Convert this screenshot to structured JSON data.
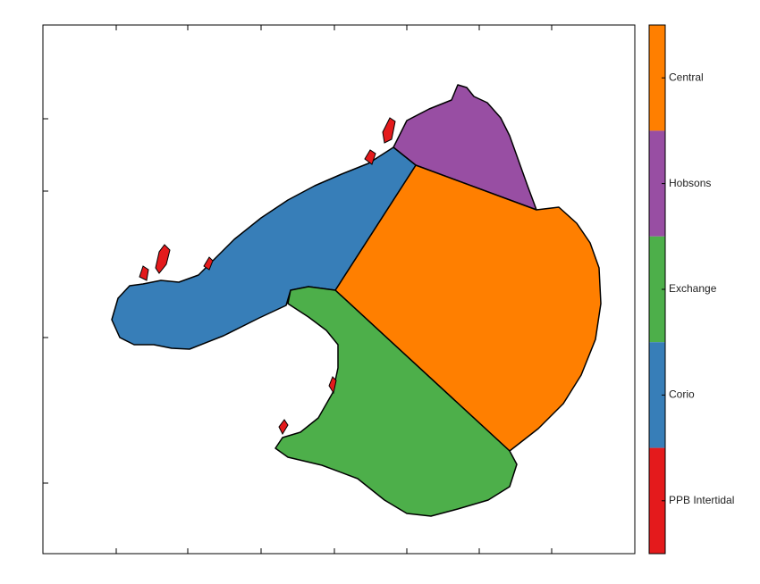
{
  "legend": {
    "items": [
      {
        "label": "Central",
        "color": "#ff7f00"
      },
      {
        "label": "Hobsons",
        "color": "#984ea3"
      },
      {
        "label": "Exchange",
        "color": "#4daf4a"
      },
      {
        "label": "Corio",
        "color": "#377eb8"
      },
      {
        "label": "PPB Intertidal",
        "color": "#e41a1c"
      }
    ]
  }
}
